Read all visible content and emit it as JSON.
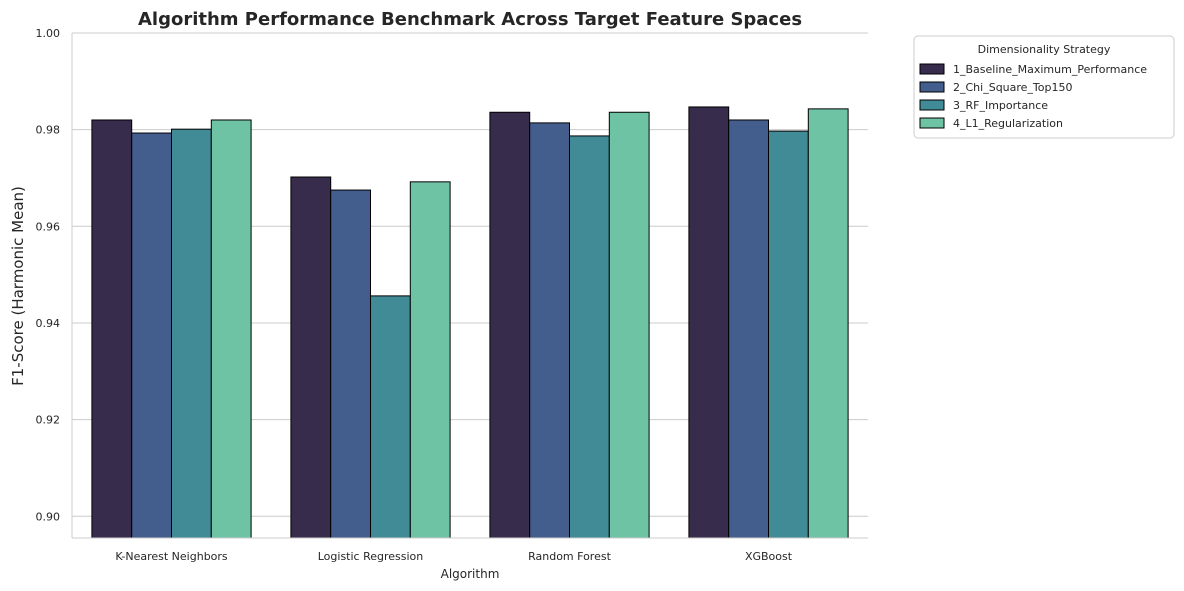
{
  "chart_data": {
    "type": "bar",
    "title": "Algorithm Performance Benchmark Across Target Feature Spaces",
    "xlabel": "Algorithm",
    "ylabel": "F1-Score (Harmonic Mean)",
    "ylim": [
      0.8955,
      1.0
    ],
    "yticks": [
      0.9,
      0.92,
      0.94,
      0.96,
      0.98,
      1.0
    ],
    "ytick_labels": [
      "0.90",
      "0.92",
      "0.94",
      "0.96",
      "0.98",
      "1.00"
    ],
    "grid": "horizontal",
    "categories": [
      "K-Nearest Neighbors",
      "Logistic Regression",
      "Random Forest",
      "XGBoost"
    ],
    "legend": {
      "title": "Dimensionality Strategy",
      "placement": "outside-upper-right"
    },
    "series": [
      {
        "name": "1_Baseline_Maximum_Performance",
        "color": "#382c4d",
        "values": [
          0.982,
          0.9702,
          0.9836,
          0.9847
        ]
      },
      {
        "name": "2_Chi_Square_Top150",
        "color": "#435d8d",
        "values": [
          0.9793,
          0.9675,
          0.9814,
          0.982
        ]
      },
      {
        "name": "3_RF_Importance",
        "color": "#418b97",
        "values": [
          0.9801,
          0.9456,
          0.9787,
          0.9797
        ]
      },
      {
        "name": "4_L1_Regularization",
        "color": "#6ec3a5",
        "values": [
          0.982,
          0.9692,
          0.9836,
          0.9843
        ]
      }
    ]
  }
}
